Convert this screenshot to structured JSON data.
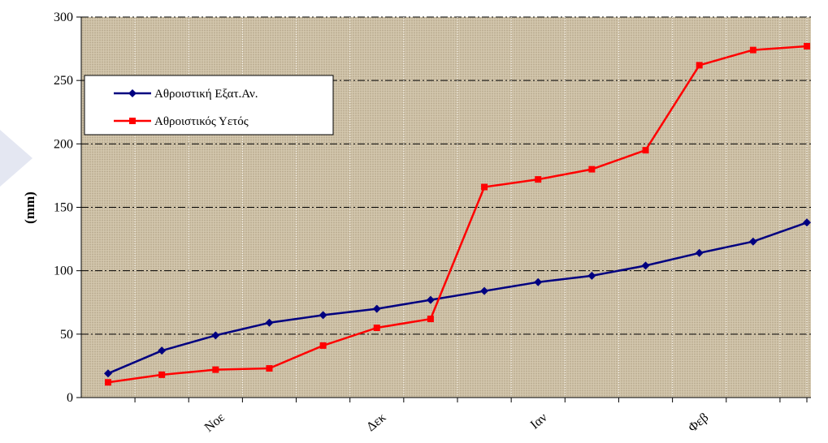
{
  "chart_data": {
    "type": "line",
    "ylabel": "(mm)",
    "ylim": [
      0,
      300
    ],
    "yticks": [
      0,
      50,
      100,
      150,
      200,
      250,
      300
    ],
    "x_labels": [
      {
        "index": 2,
        "label": "Νοε"
      },
      {
        "index": 5,
        "label": "Δεκ"
      },
      {
        "index": 8,
        "label": "Ιαν"
      },
      {
        "index": 11,
        "label": "Φεβ"
      }
    ],
    "grid": true,
    "legend_position": "top-left",
    "series": [
      {
        "name": "Αθροιστική Εξατ.Αν.",
        "color": "#000080",
        "marker": "diamond",
        "values": [
          19,
          37,
          49,
          59,
          65,
          70,
          77,
          84,
          91,
          96,
          104,
          114,
          123,
          138
        ]
      },
      {
        "name": "Αθροιστικός Υετός",
        "color": "#ff0000",
        "marker": "square",
        "values": [
          12,
          18,
          22,
          23,
          41,
          55,
          62,
          166,
          172,
          180,
          195,
          262,
          274,
          277
        ]
      }
    ]
  }
}
